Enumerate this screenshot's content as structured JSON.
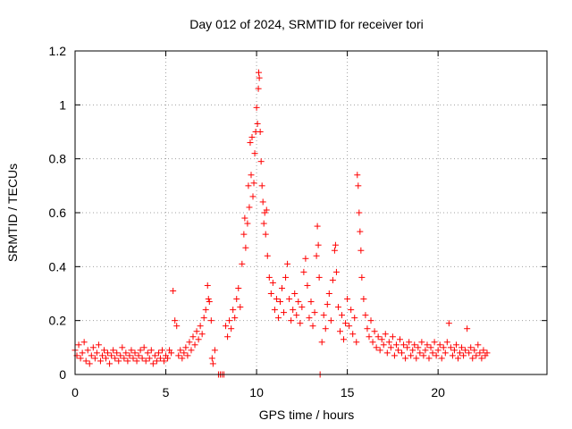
{
  "chart_data": {
    "type": "scatter",
    "title": "Day 012 of 2024, SRMTID for receiver tori",
    "xlabel": "GPS time / hours",
    "ylabel": "SRMTID / TECUs",
    "xlim": [
      0,
      26
    ],
    "ylim": [
      0,
      1.2
    ],
    "xticks": [
      0,
      5,
      10,
      15,
      20
    ],
    "xtick_labels": [
      "0",
      "5",
      "10",
      "15",
      "20"
    ],
    "yticks": [
      0,
      0.2,
      0.4,
      0.6,
      0.8,
      1.0,
      1.2
    ],
    "ytick_labels": [
      "0",
      "0.2",
      "0.4",
      "0.6",
      "0.8",
      "1",
      "1.2"
    ],
    "grid": true,
    "marker": "+",
    "color": "#ff0000",
    "series": [
      {
        "name": "SRMTID",
        "points": [
          [
            0.0,
            0.09
          ],
          [
            0.1,
            0.07
          ],
          [
            0.2,
            0.11
          ],
          [
            0.3,
            0.06
          ],
          [
            0.4,
            0.08
          ],
          [
            0.5,
            0.12
          ],
          [
            0.6,
            0.05
          ],
          [
            0.7,
            0.09
          ],
          [
            0.8,
            0.04
          ],
          [
            0.9,
            0.07
          ],
          [
            1.0,
            0.1
          ],
          [
            1.1,
            0.06
          ],
          [
            1.2,
            0.08
          ],
          [
            1.3,
            0.11
          ],
          [
            1.4,
            0.05
          ],
          [
            1.5,
            0.07
          ],
          [
            1.6,
            0.09
          ],
          [
            1.7,
            0.06
          ],
          [
            1.8,
            0.08
          ],
          [
            1.9,
            0.04
          ],
          [
            2.0,
            0.07
          ],
          [
            2.1,
            0.09
          ],
          [
            2.2,
            0.06
          ],
          [
            2.3,
            0.08
          ],
          [
            2.4,
            0.05
          ],
          [
            2.5,
            0.07
          ],
          [
            2.6,
            0.1
          ],
          [
            2.7,
            0.06
          ],
          [
            2.8,
            0.08
          ],
          [
            2.9,
            0.05
          ],
          [
            3.0,
            0.07
          ],
          [
            3.1,
            0.09
          ],
          [
            3.2,
            0.06
          ],
          [
            3.3,
            0.08
          ],
          [
            3.4,
            0.05
          ],
          [
            3.5,
            0.07
          ],
          [
            3.6,
            0.09
          ],
          [
            3.7,
            0.06
          ],
          [
            3.8,
            0.1
          ],
          [
            3.9,
            0.05
          ],
          [
            4.0,
            0.08
          ],
          [
            4.1,
            0.06
          ],
          [
            4.2,
            0.09
          ],
          [
            4.3,
            0.04
          ],
          [
            4.4,
            0.07
          ],
          [
            4.5,
            0.05
          ],
          [
            4.6,
            0.08
          ],
          [
            4.7,
            0.06
          ],
          [
            4.8,
            0.09
          ],
          [
            4.9,
            0.05
          ],
          [
            5.0,
            0.07
          ],
          [
            5.1,
            0.06
          ],
          [
            5.2,
            0.09
          ],
          [
            5.3,
            0.08
          ],
          [
            5.4,
            0.31
          ],
          [
            5.5,
            0.2
          ],
          [
            5.6,
            0.18
          ],
          [
            5.7,
            0.07
          ],
          [
            5.8,
            0.09
          ],
          [
            5.9,
            0.06
          ],
          [
            6.0,
            0.08
          ],
          [
            6.1,
            0.1
          ],
          [
            6.2,
            0.07
          ],
          [
            6.3,
            0.12
          ],
          [
            6.4,
            0.09
          ],
          [
            6.5,
            0.14
          ],
          [
            6.6,
            0.11
          ],
          [
            6.7,
            0.16
          ],
          [
            6.8,
            0.13
          ],
          [
            6.9,
            0.18
          ],
          [
            7.0,
            0.15
          ],
          [
            7.1,
            0.21
          ],
          [
            7.2,
            0.24
          ],
          [
            7.3,
            0.33
          ],
          [
            7.35,
            0.28
          ],
          [
            7.4,
            0.27
          ],
          [
            7.5,
            0.2
          ],
          [
            7.55,
            0.06
          ],
          [
            7.6,
            0.04
          ],
          [
            7.7,
            0.09
          ],
          [
            7.9,
            0.0
          ],
          [
            8.0,
            0.0
          ],
          [
            8.1,
            0.0
          ],
          [
            8.2,
            0.0
          ],
          [
            8.3,
            0.18
          ],
          [
            8.4,
            0.14
          ],
          [
            8.5,
            0.2
          ],
          [
            8.6,
            0.17
          ],
          [
            8.7,
            0.24
          ],
          [
            8.8,
            0.21
          ],
          [
            8.9,
            0.28
          ],
          [
            9.0,
            0.32
          ],
          [
            9.1,
            0.25
          ],
          [
            9.2,
            0.41
          ],
          [
            9.3,
            0.52
          ],
          [
            9.35,
            0.58
          ],
          [
            9.4,
            0.47
          ],
          [
            9.5,
            0.56
          ],
          [
            9.55,
            0.7
          ],
          [
            9.6,
            0.62
          ],
          [
            9.65,
            0.86
          ],
          [
            9.7,
            0.74
          ],
          [
            9.75,
            0.88
          ],
          [
            9.8,
            0.66
          ],
          [
            9.85,
            0.71
          ],
          [
            9.9,
            0.82
          ],
          [
            9.95,
            0.9
          ],
          [
            10.0,
            0.99
          ],
          [
            10.05,
            0.93
          ],
          [
            10.1,
            1.06
          ],
          [
            10.12,
            1.12
          ],
          [
            10.15,
            1.1
          ],
          [
            10.2,
            0.9
          ],
          [
            10.25,
            0.79
          ],
          [
            10.3,
            0.7
          ],
          [
            10.35,
            0.64
          ],
          [
            10.4,
            0.56
          ],
          [
            10.45,
            0.6
          ],
          [
            10.5,
            0.52
          ],
          [
            10.55,
            0.61
          ],
          [
            10.6,
            0.44
          ],
          [
            10.7,
            0.36
          ],
          [
            10.8,
            0.3
          ],
          [
            10.9,
            0.34
          ],
          [
            11.0,
            0.24
          ],
          [
            11.1,
            0.28
          ],
          [
            11.2,
            0.21
          ],
          [
            11.3,
            0.27
          ],
          [
            11.4,
            0.32
          ],
          [
            11.5,
            0.23
          ],
          [
            11.6,
            0.36
          ],
          [
            11.7,
            0.41
          ],
          [
            11.8,
            0.28
          ],
          [
            11.9,
            0.2
          ],
          [
            12.0,
            0.24
          ],
          [
            12.1,
            0.3
          ],
          [
            12.2,
            0.22
          ],
          [
            12.3,
            0.27
          ],
          [
            12.4,
            0.19
          ],
          [
            12.5,
            0.25
          ],
          [
            12.6,
            0.38
          ],
          [
            12.7,
            0.43
          ],
          [
            12.8,
            0.33
          ],
          [
            12.9,
            0.21
          ],
          [
            13.0,
            0.27
          ],
          [
            13.1,
            0.18
          ],
          [
            13.2,
            0.23
          ],
          [
            13.3,
            0.44
          ],
          [
            13.35,
            0.55
          ],
          [
            13.4,
            0.48
          ],
          [
            13.45,
            0.36
          ],
          [
            13.5,
            0.0
          ],
          [
            13.6,
            0.12
          ],
          [
            13.7,
            0.22
          ],
          [
            13.8,
            0.17
          ],
          [
            13.9,
            0.26
          ],
          [
            14.0,
            0.3
          ],
          [
            14.1,
            0.2
          ],
          [
            14.2,
            0.35
          ],
          [
            14.3,
            0.46
          ],
          [
            14.35,
            0.48
          ],
          [
            14.4,
            0.38
          ],
          [
            14.5,
            0.25
          ],
          [
            14.6,
            0.16
          ],
          [
            14.7,
            0.22
          ],
          [
            14.8,
            0.13
          ],
          [
            14.9,
            0.19
          ],
          [
            15.0,
            0.28
          ],
          [
            15.1,
            0.18
          ],
          [
            15.2,
            0.24
          ],
          [
            15.3,
            0.15
          ],
          [
            15.4,
            0.21
          ],
          [
            15.5,
            0.12
          ],
          [
            15.55,
            0.74
          ],
          [
            15.6,
            0.7
          ],
          [
            15.65,
            0.6
          ],
          [
            15.7,
            0.53
          ],
          [
            15.75,
            0.46
          ],
          [
            15.8,
            0.36
          ],
          [
            15.9,
            0.28
          ],
          [
            16.0,
            0.22
          ],
          [
            16.1,
            0.17
          ],
          [
            16.2,
            0.14
          ],
          [
            16.3,
            0.2
          ],
          [
            16.4,
            0.12
          ],
          [
            16.5,
            0.16
          ],
          [
            16.6,
            0.1
          ],
          [
            16.7,
            0.14
          ],
          [
            16.8,
            0.09
          ],
          [
            16.9,
            0.13
          ],
          [
            17.0,
            0.11
          ],
          [
            17.1,
            0.15
          ],
          [
            17.2,
            0.08
          ],
          [
            17.3,
            0.12
          ],
          [
            17.4,
            0.1
          ],
          [
            17.5,
            0.14
          ],
          [
            17.6,
            0.07
          ],
          [
            17.7,
            0.11
          ],
          [
            17.8,
            0.09
          ],
          [
            17.9,
            0.13
          ],
          [
            18.0,
            0.08
          ],
          [
            18.1,
            0.11
          ],
          [
            18.2,
            0.06
          ],
          [
            18.3,
            0.1
          ],
          [
            18.4,
            0.12
          ],
          [
            18.5,
            0.07
          ],
          [
            18.6,
            0.09
          ],
          [
            18.7,
            0.11
          ],
          [
            18.8,
            0.06
          ],
          [
            18.9,
            0.1
          ],
          [
            19.0,
            0.08
          ],
          [
            19.1,
            0.12
          ],
          [
            19.2,
            0.07
          ],
          [
            19.3,
            0.09
          ],
          [
            19.4,
            0.11
          ],
          [
            19.5,
            0.06
          ],
          [
            19.6,
            0.1
          ],
          [
            19.7,
            0.08
          ],
          [
            19.8,
            0.12
          ],
          [
            19.9,
            0.07
          ],
          [
            20.0,
            0.09
          ],
          [
            20.1,
            0.11
          ],
          [
            20.2,
            0.06
          ],
          [
            20.3,
            0.1
          ],
          [
            20.4,
            0.08
          ],
          [
            20.5,
            0.12
          ],
          [
            20.6,
            0.19
          ],
          [
            20.7,
            0.1
          ],
          [
            20.8,
            0.07
          ],
          [
            20.9,
            0.09
          ],
          [
            21.0,
            0.11
          ],
          [
            21.1,
            0.06
          ],
          [
            21.2,
            0.08
          ],
          [
            21.3,
            0.1
          ],
          [
            21.4,
            0.07
          ],
          [
            21.5,
            0.09
          ],
          [
            21.6,
            0.17
          ],
          [
            21.7,
            0.08
          ],
          [
            21.8,
            0.1
          ],
          [
            21.9,
            0.06
          ],
          [
            22.0,
            0.09
          ],
          [
            22.1,
            0.07
          ],
          [
            22.2,
            0.11
          ],
          [
            22.3,
            0.08
          ],
          [
            22.4,
            0.06
          ],
          [
            22.5,
            0.09
          ],
          [
            22.6,
            0.07
          ],
          [
            22.7,
            0.08
          ]
        ]
      }
    ]
  }
}
